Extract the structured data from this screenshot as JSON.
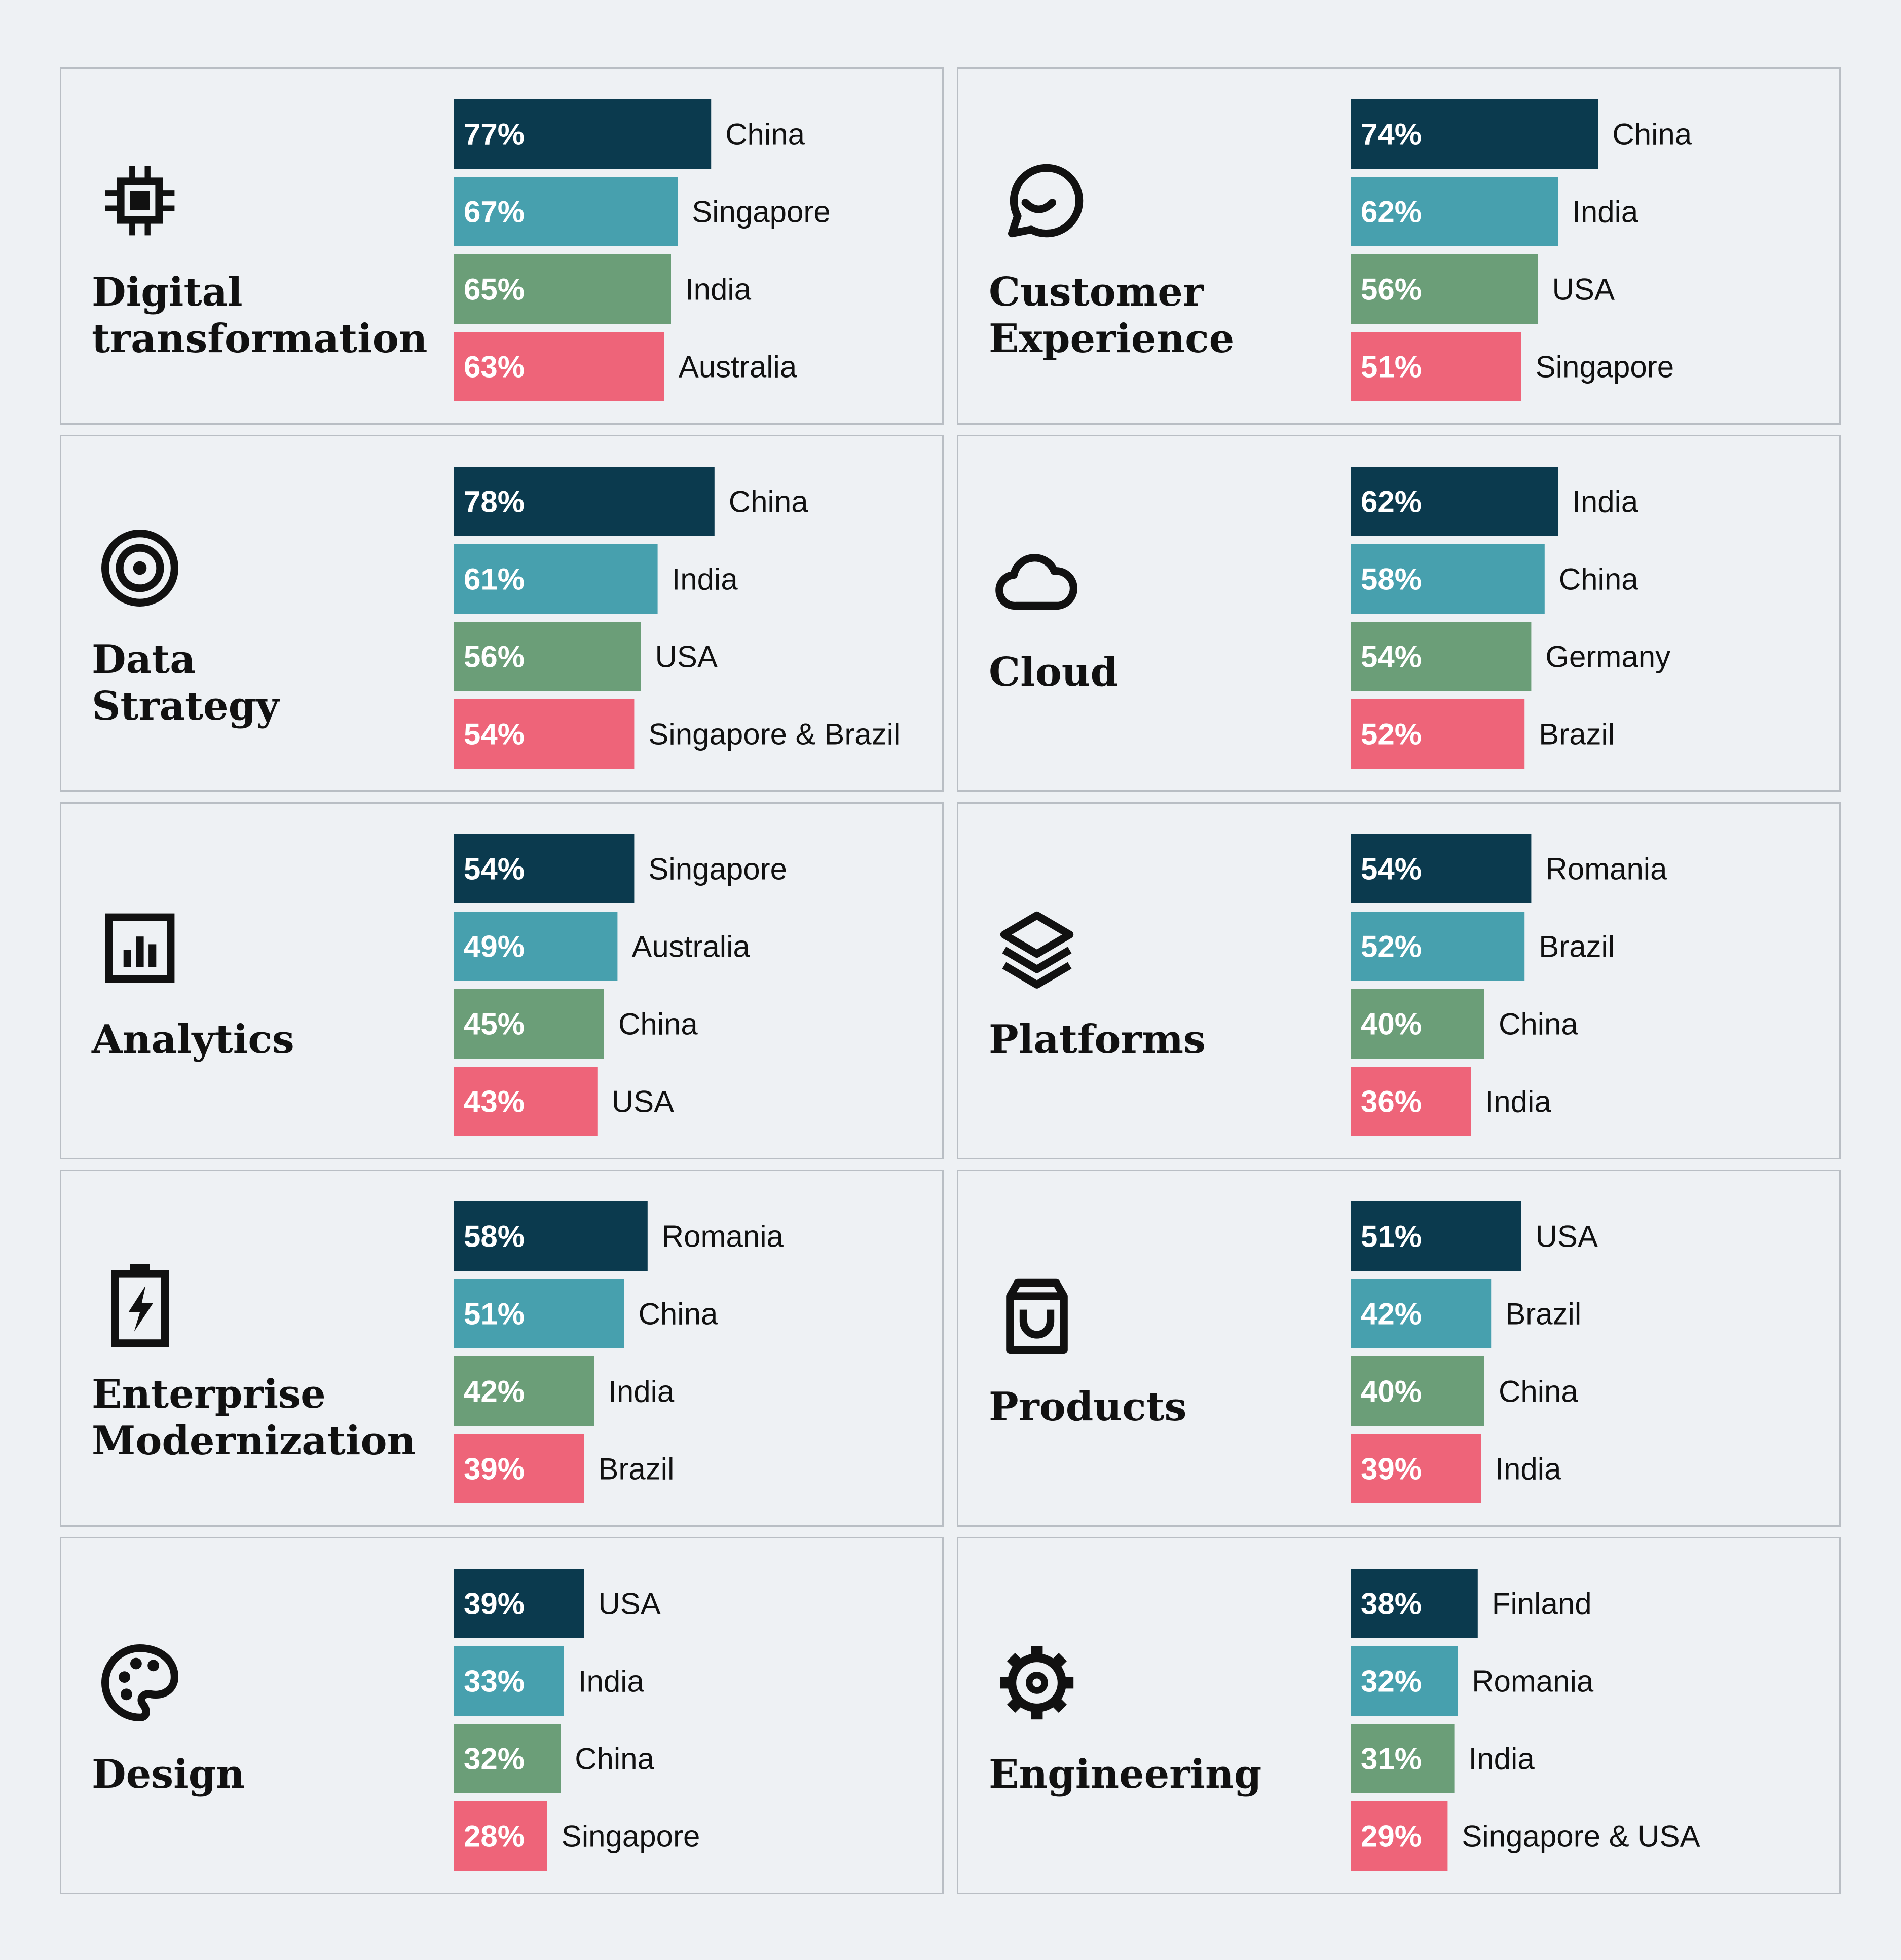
{
  "colors": {
    "rank1": "#0b3a4e",
    "rank2": "#47a0ae",
    "rank3": "#6b9e78",
    "rank4": "#ee6479"
  },
  "chart_data": [
    {
      "type": "bar",
      "title": "Digital transformation",
      "icon": "chip-icon",
      "categories": [
        "China",
        "Singapore",
        "India",
        "Australia"
      ],
      "values": [
        77,
        67,
        65,
        63
      ],
      "labels": [
        "77%",
        "67%",
        "65%",
        "63%"
      ]
    },
    {
      "type": "bar",
      "title": "Customer Experience",
      "icon": "smile-chat-icon",
      "categories": [
        "China",
        "India",
        "USA",
        "Singapore"
      ],
      "values": [
        74,
        62,
        56,
        51
      ],
      "labels": [
        "74%",
        "62%",
        "56%",
        "51%"
      ]
    },
    {
      "type": "bar",
      "title": "Data Strategy",
      "icon": "target-icon",
      "categories": [
        "China",
        "India",
        "USA",
        "Singapore & Brazil"
      ],
      "values": [
        78,
        61,
        56,
        54
      ],
      "labels": [
        "78%",
        "61%",
        "56%",
        "54%"
      ]
    },
    {
      "type": "bar",
      "title": "Cloud",
      "icon": "cloud-icon",
      "categories": [
        "India",
        "China",
        "Germany",
        "Brazil"
      ],
      "values": [
        62,
        58,
        54,
        52
      ],
      "labels": [
        "62%",
        "58%",
        "54%",
        "52%"
      ]
    },
    {
      "type": "bar",
      "title": "Analytics",
      "icon": "bar-chart-icon",
      "categories": [
        "Singapore",
        "Australia",
        "China",
        "USA"
      ],
      "values": [
        54,
        49,
        45,
        43
      ],
      "labels": [
        "54%",
        "49%",
        "45%",
        "43%"
      ]
    },
    {
      "type": "bar",
      "title": "Platforms",
      "icon": "layers-icon",
      "categories": [
        "Romania",
        "Brazil",
        "China",
        "India"
      ],
      "values": [
        54,
        52,
        40,
        36
      ],
      "labels": [
        "54%",
        "52%",
        "40%",
        "36%"
      ]
    },
    {
      "type": "bar",
      "title": "Enterprise Modernization",
      "icon": "battery-bolt-icon",
      "categories": [
        "Romania",
        "China",
        "India",
        "Brazil"
      ],
      "values": [
        58,
        51,
        42,
        39
      ],
      "labels": [
        "58%",
        "51%",
        "42%",
        "39%"
      ]
    },
    {
      "type": "bar",
      "title": "Products",
      "icon": "shopping-bag-icon",
      "categories": [
        "USA",
        "Brazil",
        "China",
        "India"
      ],
      "values": [
        51,
        42,
        40,
        39
      ],
      "labels": [
        "51%",
        "42%",
        "40%",
        "39%"
      ]
    },
    {
      "type": "bar",
      "title": "Design",
      "icon": "palette-icon",
      "categories": [
        "USA",
        "India",
        "China",
        "Singapore"
      ],
      "values": [
        39,
        33,
        32,
        28
      ],
      "labels": [
        "39%",
        "33%",
        "32%",
        "28%"
      ]
    },
    {
      "type": "bar",
      "title": "Engineering",
      "icon": "gear-icon",
      "categories": [
        "Finland",
        "Romania",
        "India",
        "Singapore & USA"
      ],
      "values": [
        38,
        32,
        31,
        29
      ],
      "labels": [
        "38%",
        "32%",
        "31%",
        "29%"
      ]
    }
  ]
}
